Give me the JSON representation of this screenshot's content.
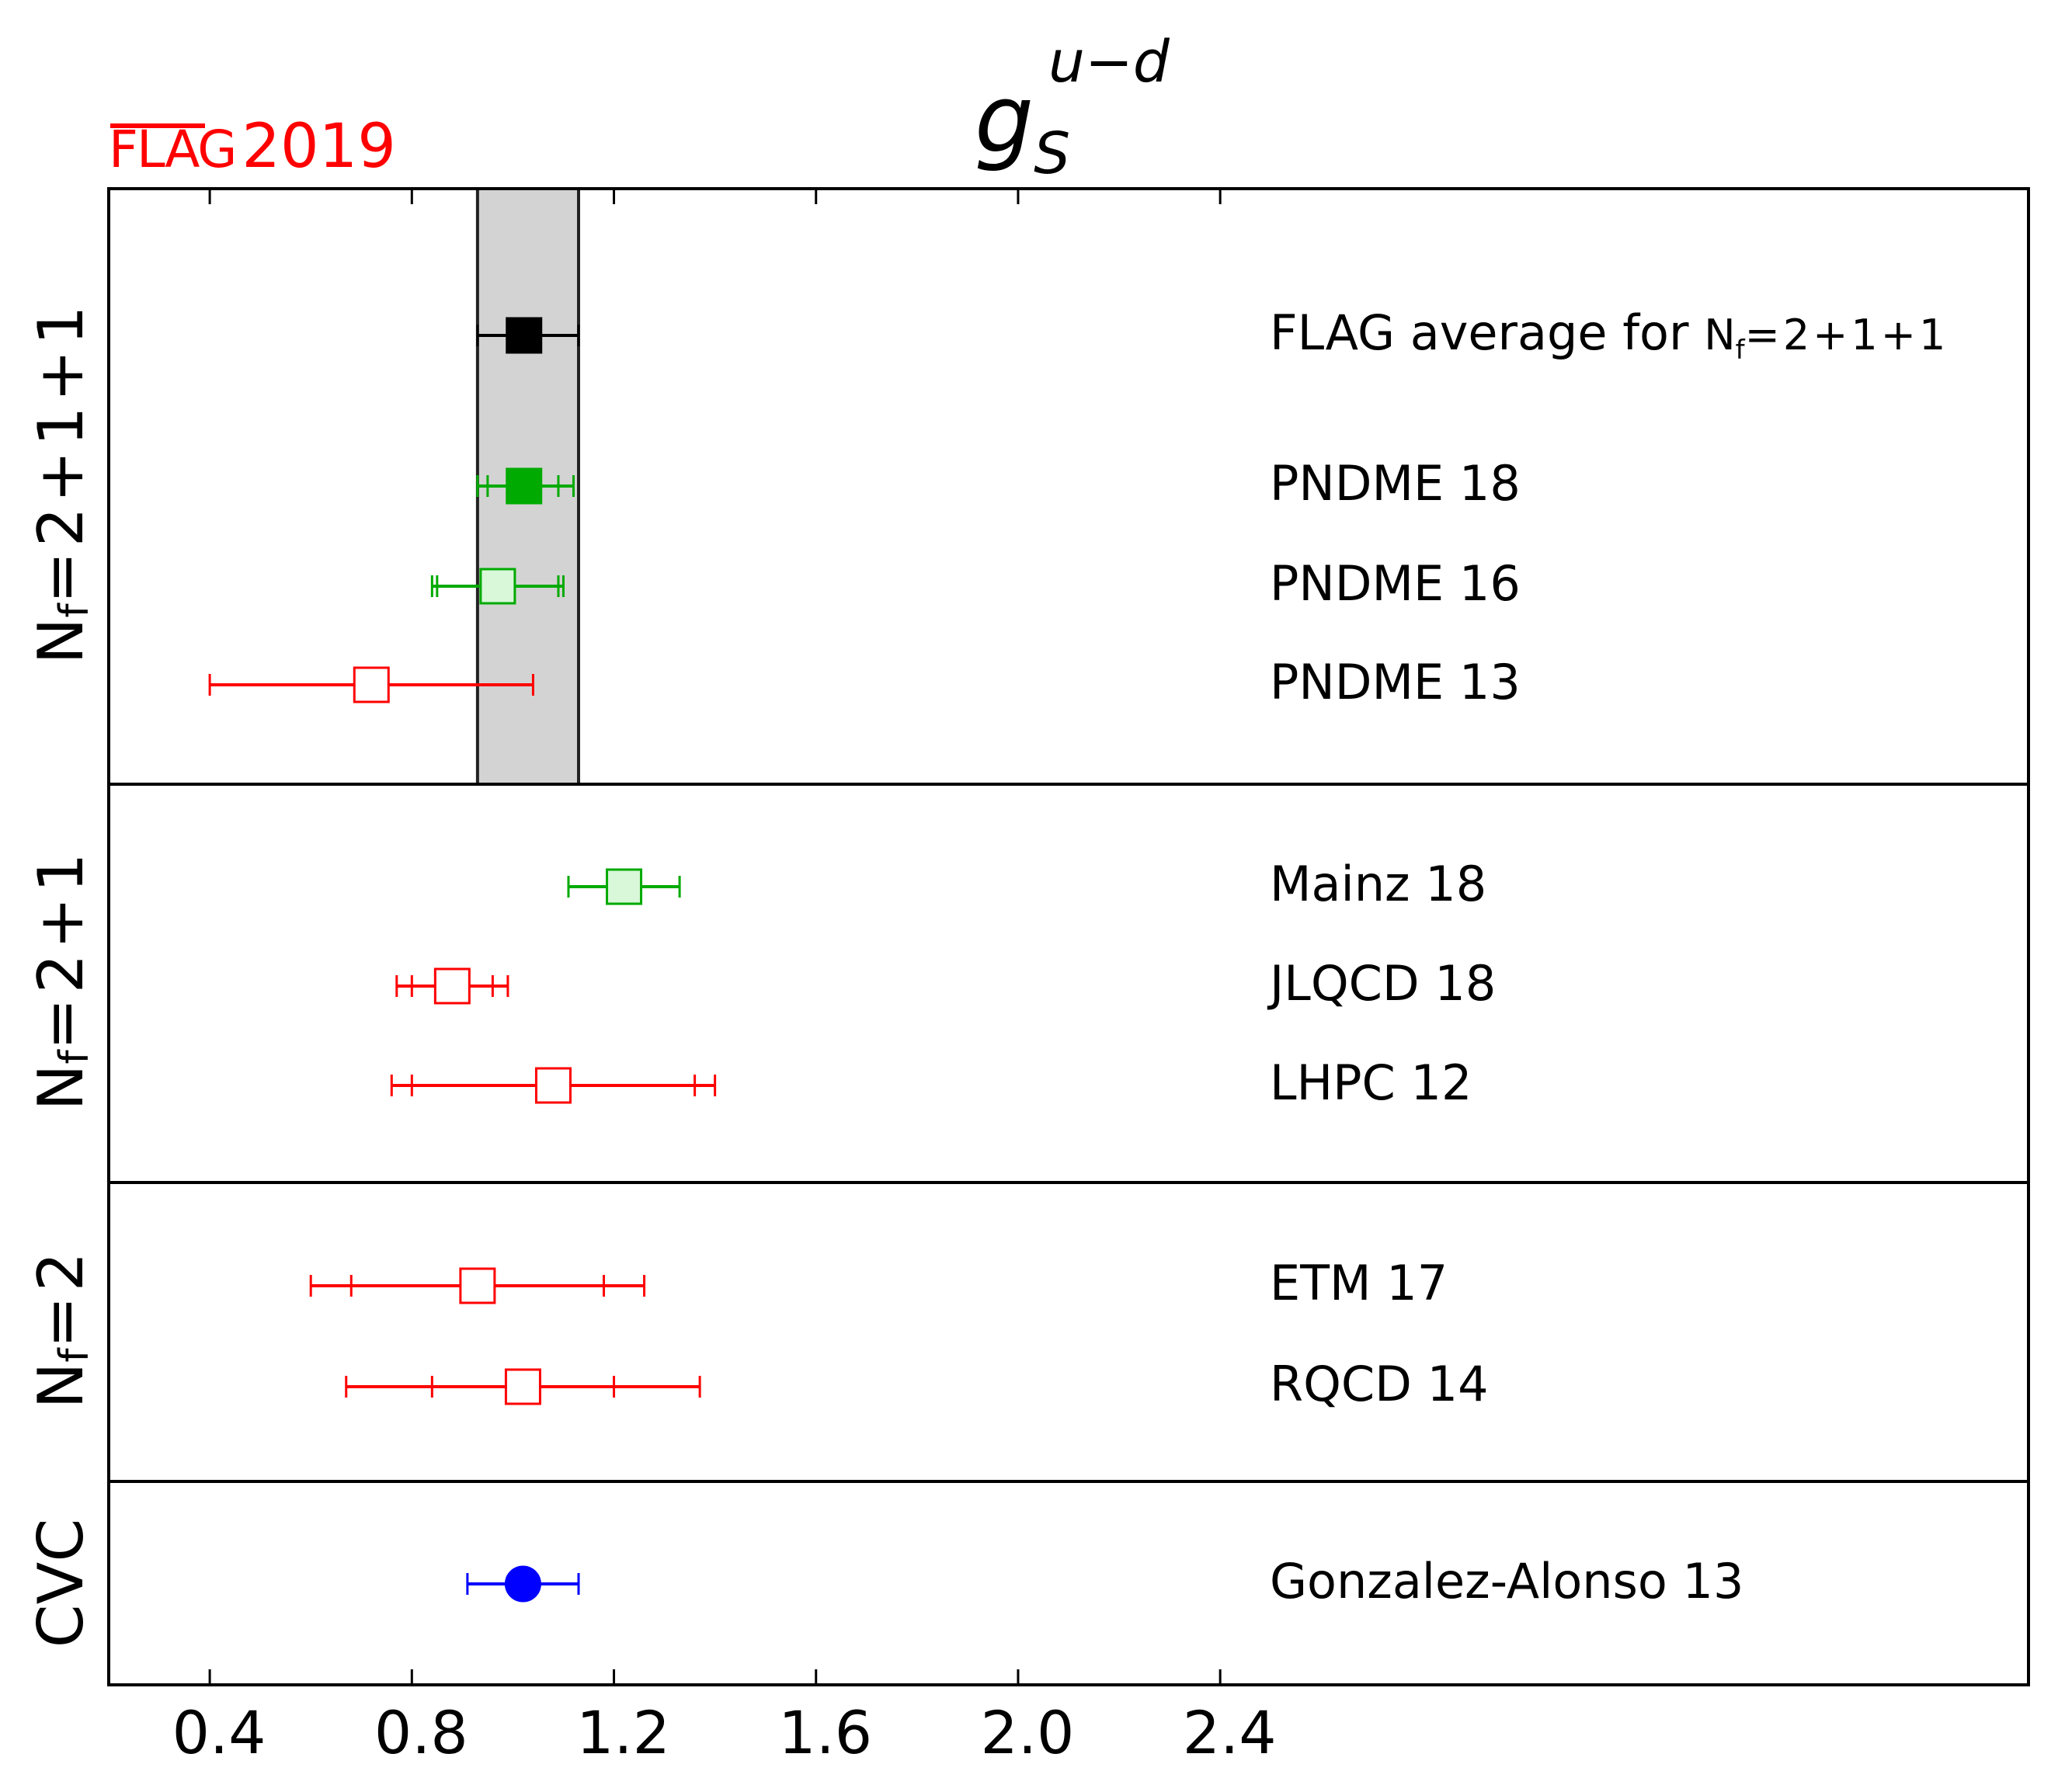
{
  "logo": {
    "label": "FLAG",
    "year": "2019",
    "color": "#ff0000"
  },
  "chart_data": {
    "type": "scatter",
    "title": {
      "base": "g",
      "subscript": "S",
      "superscript": "u−d"
    },
    "xlabel": "",
    "ylabel": "",
    "xlim": [
      0.2,
      4.0
    ],
    "xticks": [
      {
        "value": 0.4,
        "label": "0.4"
      },
      {
        "value": 0.8,
        "label": "0.8"
      },
      {
        "value": 1.2,
        "label": "1.2"
      },
      {
        "value": 1.6,
        "label": "1.6"
      },
      {
        "value": 2.0,
        "label": "2.0"
      },
      {
        "value": 2.4,
        "label": "2.4"
      }
    ],
    "grid": false,
    "average_band": {
      "low": 0.93,
      "high": 1.13,
      "color": "#d3d3d3"
    },
    "groups": [
      {
        "label": "N",
        "label_sub": "f",
        "label_rest": "=2+1+1",
        "points": [
          {
            "name": "FLAG average for ",
            "name_math": "N",
            "name_sub": "f",
            "name_rest": "=2+1+1",
            "value": 1.022,
            "err_low": 0.93,
            "err_high": 1.13,
            "inner_low": 0.93,
            "inner_high": 1.13,
            "marker": "square",
            "fill": "#000000",
            "stroke": "#000000",
            "line": "#000000"
          },
          {
            "name": "PNDME 18",
            "value": 1.022,
            "err_low": 0.93,
            "err_high": 1.12,
            "inner_low": 0.95,
            "inner_high": 1.09,
            "marker": "square",
            "fill": "#00aa00",
            "stroke": "#00aa00",
            "line": "#00aa00"
          },
          {
            "name": "PNDME 16",
            "value": 0.97,
            "err_low": 0.84,
            "err_high": 1.1,
            "inner_low": 0.85,
            "inner_high": 1.09,
            "marker": "square",
            "fill": "#d9f7d9",
            "stroke": "#00aa00",
            "line": "#00aa00"
          },
          {
            "name": "PNDME 13",
            "value": 0.72,
            "err_low": 0.4,
            "err_high": 1.04,
            "inner_low": 0.4,
            "inner_high": 1.04,
            "marker": "square",
            "fill": "#ffffff",
            "stroke": "#ff0000",
            "line": "#ff0000"
          }
        ]
      },
      {
        "label": "N",
        "label_sub": "f",
        "label_rest": "=2+1",
        "points": [
          {
            "name": "Mainz 18",
            "value": 1.22,
            "err_low": 1.11,
            "err_high": 1.33,
            "inner_low": 1.11,
            "inner_high": 1.33,
            "marker": "square",
            "fill": "#d9f7d9",
            "stroke": "#00aa00",
            "line": "#00aa00"
          },
          {
            "name": "JLQCD 18",
            "value": 0.88,
            "err_low": 0.77,
            "err_high": 0.99,
            "inner_low": 0.8,
            "inner_high": 0.96,
            "marker": "square",
            "fill": "#ffffff",
            "stroke": "#ff0000",
            "line": "#ff0000"
          },
          {
            "name": "LHPC 12",
            "value": 1.08,
            "err_low": 0.76,
            "err_high": 1.4,
            "inner_low": 0.8,
            "inner_high": 1.36,
            "marker": "square",
            "fill": "#ffffff",
            "stroke": "#ff0000",
            "line": "#ff0000"
          }
        ]
      },
      {
        "label": "N",
        "label_sub": "f",
        "label_rest": "=2",
        "points": [
          {
            "name": "ETM 17",
            "value": 0.93,
            "err_low": 0.6,
            "err_high": 1.26,
            "inner_low": 0.68,
            "inner_high": 1.18,
            "marker": "square",
            "fill": "#ffffff",
            "stroke": "#ff0000",
            "line": "#ff0000"
          },
          {
            "name": "RQCD 14",
            "value": 1.02,
            "err_low": 0.67,
            "err_high": 1.37,
            "inner_low": 0.84,
            "inner_high": 1.2,
            "marker": "square",
            "fill": "#ffffff",
            "stroke": "#ff0000",
            "line": "#ff0000"
          }
        ]
      },
      {
        "label": "CVC",
        "label_sub": "",
        "label_rest": "",
        "points": [
          {
            "name": "Gonzalez-Alonso 13",
            "value": 1.02,
            "err_low": 0.91,
            "err_high": 1.13,
            "inner_low": 0.91,
            "inner_high": 1.13,
            "marker": "circle",
            "fill": "#0000ff",
            "stroke": "#0000ff",
            "line": "#0000ff"
          }
        ]
      }
    ]
  }
}
